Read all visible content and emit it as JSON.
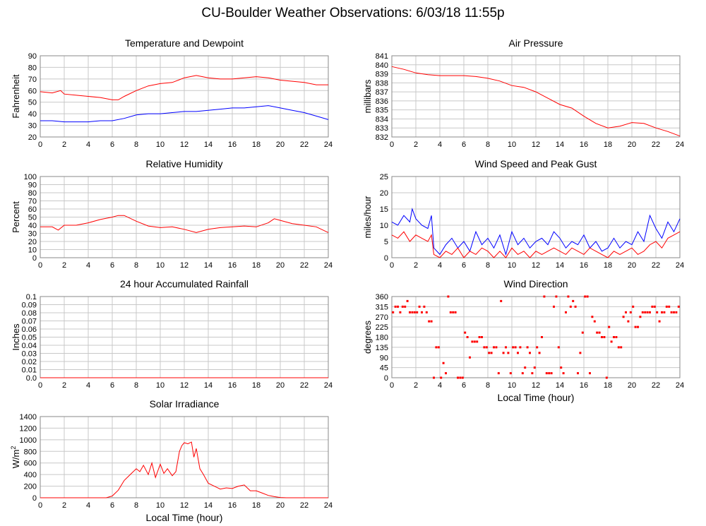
{
  "title": "CU-Boulder Weather Observations: 6/03/18 11:55p",
  "colors": {
    "red": "#ff0000",
    "blue": "#0000ff",
    "grid": "#c8c8c8",
    "frame": "#888888"
  },
  "chart_data": [
    {
      "id": "temp",
      "type": "line",
      "title": "Temperature and Dewpoint",
      "ylabel": "Fahrenheit",
      "xlabel": "",
      "xlim": [
        0,
        24
      ],
      "ylim": [
        20,
        90
      ],
      "yticks": [
        "20",
        "30",
        "40",
        "50",
        "60",
        "70",
        "80",
        "90"
      ],
      "xticks": [
        "0",
        "2",
        "4",
        "6",
        "8",
        "10",
        "12",
        "14",
        "16",
        "18",
        "20",
        "22",
        "24"
      ],
      "grid": true,
      "series": [
        {
          "color": "#ff0000",
          "x": [
            0,
            1,
            1.7,
            2,
            3,
            4,
            5,
            6,
            6.5,
            7,
            8,
            9,
            10,
            11,
            12,
            13,
            14,
            15,
            16,
            17,
            18,
            19,
            20,
            21,
            22,
            23,
            24
          ],
          "values": [
            59,
            58,
            60,
            57,
            56,
            55,
            54,
            52,
            52,
            55,
            60,
            64,
            66,
            67,
            71,
            73,
            71,
            70,
            70,
            71,
            72,
            71,
            69,
            68,
            67,
            65,
            65
          ]
        },
        {
          "color": "#0000ff",
          "x": [
            0,
            1,
            2,
            3,
            4,
            5,
            6,
            7,
            8,
            9,
            10,
            11,
            12,
            13,
            14,
            15,
            16,
            17,
            18,
            19,
            20,
            21,
            22,
            23,
            24
          ],
          "values": [
            34,
            34,
            33,
            33,
            33,
            34,
            34,
            36,
            39,
            40,
            40,
            41,
            42,
            42,
            43,
            44,
            45,
            45,
            46,
            47,
            45,
            43,
            41,
            38,
            35
          ]
        }
      ]
    },
    {
      "id": "pressure",
      "type": "line",
      "title": "Air Pressure",
      "ylabel": "millibars",
      "xlabel": "",
      "xlim": [
        0,
        24
      ],
      "ylim": [
        832,
        841
      ],
      "yticks": [
        "832",
        "833",
        "834",
        "835",
        "836",
        "837",
        "838",
        "839",
        "840",
        "841"
      ],
      "xticks": [
        "0",
        "2",
        "4",
        "6",
        "8",
        "10",
        "12",
        "14",
        "16",
        "18",
        "20",
        "22",
        "24"
      ],
      "grid": true,
      "series": [
        {
          "color": "#ff0000",
          "x": [
            0,
            1,
            2,
            3,
            4,
            5,
            6,
            7,
            8,
            9,
            10,
            11,
            12,
            13,
            14,
            15,
            16,
            17,
            18,
            19,
            20,
            21,
            22,
            23,
            24
          ],
          "values": [
            839.8,
            839.5,
            839.1,
            838.9,
            838.8,
            838.8,
            838.8,
            838.7,
            838.5,
            838.2,
            837.7,
            837.5,
            837,
            836.3,
            835.6,
            835.2,
            834.3,
            833.5,
            833.0,
            833.2,
            833.6,
            833.5,
            833.0,
            832.6,
            832.1
          ]
        }
      ]
    },
    {
      "id": "humidity",
      "type": "line",
      "title": "Relative Humidity",
      "ylabel": "Percent",
      "xlabel": "",
      "xlim": [
        0,
        24
      ],
      "ylim": [
        0,
        100
      ],
      "yticks": [
        "0",
        "10",
        "20",
        "30",
        "40",
        "50",
        "60",
        "70",
        "80",
        "90",
        "100"
      ],
      "xticks": [
        "0",
        "2",
        "4",
        "6",
        "8",
        "10",
        "12",
        "14",
        "16",
        "18",
        "20",
        "22",
        "24"
      ],
      "grid": true,
      "series": [
        {
          "color": "#ff0000",
          "x": [
            0,
            1,
            1.5,
            2,
            3,
            4,
            5,
            6,
            6.5,
            7,
            8,
            9,
            10,
            11,
            12,
            13,
            14,
            15,
            16,
            17,
            18,
            19,
            19.5,
            20,
            21,
            22,
            23,
            24
          ],
          "values": [
            38,
            38,
            34,
            40,
            40,
            43,
            47,
            50,
            52,
            52,
            45,
            39,
            37,
            38,
            35,
            31,
            35,
            37,
            38,
            39,
            38,
            43,
            48,
            46,
            42,
            40,
            38,
            31
          ]
        }
      ]
    },
    {
      "id": "wind",
      "type": "line",
      "title": "Wind Speed and Peak Gust",
      "ylabel": "miles/hour",
      "xlabel": "",
      "xlim": [
        0,
        24
      ],
      "ylim": [
        0,
        25
      ],
      "yticks": [
        "0",
        "5",
        "10",
        "15",
        "20",
        "25"
      ],
      "xticks": [
        "0",
        "2",
        "4",
        "6",
        "8",
        "10",
        "12",
        "14",
        "16",
        "18",
        "20",
        "22",
        "24"
      ],
      "grid": true,
      "series": [
        {
          "color": "#0000ff",
          "x": [
            0,
            0.5,
            1,
            1.5,
            1.7,
            2,
            2.5,
            3,
            3.3,
            3.5,
            4,
            4.5,
            5,
            5.5,
            6,
            6.5,
            7,
            7.5,
            8,
            8.5,
            9,
            9.5,
            10,
            10.5,
            11,
            11.5,
            12,
            12.5,
            13,
            13.5,
            14,
            14.5,
            15,
            15.5,
            16,
            16.5,
            17,
            17.5,
            18,
            18.5,
            19,
            19.5,
            20,
            20.5,
            21,
            21.5,
            22,
            22.5,
            23,
            23.5,
            24
          ],
          "values": [
            11,
            10,
            13,
            11,
            15,
            12,
            10,
            9,
            13,
            3,
            1,
            4,
            6,
            3,
            5,
            2,
            8,
            4,
            6,
            3,
            7,
            1,
            8,
            4,
            6,
            3,
            5,
            6,
            4,
            8,
            6,
            3,
            5,
            4,
            7,
            3,
            5,
            2,
            3,
            6,
            3,
            5,
            4,
            8,
            5,
            13,
            9,
            6,
            11,
            8,
            12
          ]
        },
        {
          "color": "#ff0000",
          "x": [
            0,
            0.5,
            1,
            1.5,
            2,
            2.5,
            3,
            3.3,
            3.5,
            4,
            4.5,
            5,
            5.5,
            6,
            6.5,
            7,
            7.5,
            8,
            8.5,
            9,
            9.5,
            10,
            10.5,
            11,
            11.5,
            12,
            12.5,
            13,
            13.5,
            14,
            14.5,
            15,
            15.5,
            16,
            16.5,
            17,
            17.5,
            18,
            18.5,
            19,
            19.5,
            20,
            20.5,
            21,
            21.5,
            22,
            22.5,
            23,
            23.5,
            24
          ],
          "values": [
            7,
            6,
            8,
            5,
            7,
            6,
            5,
            7,
            1,
            0,
            2,
            1,
            3,
            0,
            2,
            1,
            3,
            2,
            0,
            2,
            0,
            3,
            1,
            2,
            0,
            2,
            1,
            2,
            3,
            2,
            1,
            3,
            2,
            1,
            3,
            2,
            1,
            0,
            2,
            1,
            2,
            3,
            1,
            2,
            4,
            5,
            3,
            6,
            7,
            8
          ]
        }
      ]
    },
    {
      "id": "rain",
      "type": "line",
      "title": "24 hour Accumulated Rainfall",
      "ylabel": "Inches",
      "xlabel": "",
      "xlim": [
        0,
        24
      ],
      "ylim": [
        0,
        0.1
      ],
      "yticks": [
        "0.0",
        "0.01",
        "0.02",
        "0.03",
        "0.04",
        "0.05",
        "0.06",
        "0.07",
        "0.08",
        "0.09",
        "0.1"
      ],
      "xticks": [
        "0",
        "2",
        "4",
        "6",
        "8",
        "10",
        "12",
        "14",
        "16",
        "18",
        "20",
        "22",
        "24"
      ],
      "grid": true,
      "series": [
        {
          "color": "#ff0000",
          "x": [
            0,
            24
          ],
          "values": [
            0,
            0
          ]
        }
      ]
    },
    {
      "id": "direction",
      "type": "scatter",
      "title": "Wind Direction",
      "ylabel": "degrees",
      "xlabel": "Local Time (hour)",
      "xlim": [
        0,
        24
      ],
      "ylim": [
        0,
        360
      ],
      "yticks": [
        "0",
        "45",
        "90",
        "135",
        "180",
        "225",
        "270",
        "315",
        "360"
      ],
      "xticks": [
        "0",
        "2",
        "4",
        "6",
        "8",
        "10",
        "12",
        "14",
        "16",
        "18",
        "20",
        "22",
        "24"
      ],
      "grid": true,
      "series": [
        {
          "color": "#ff0000",
          "x": [
            0.1,
            0.3,
            0.5,
            0.7,
            0.9,
            1.1,
            1.3,
            1.5,
            1.7,
            1.9,
            2.1,
            2.3,
            2.5,
            2.7,
            2.9,
            3.1,
            3.3,
            3.5,
            3.7,
            3.9,
            4.1,
            4.3,
            4.5,
            4.7,
            4.9,
            5.1,
            5.3,
            5.5,
            5.7,
            5.9,
            6.1,
            6.3,
            6.5,
            6.7,
            6.9,
            7.1,
            7.3,
            7.5,
            7.7,
            7.9,
            8.1,
            8.3,
            8.5,
            8.7,
            8.9,
            9.1,
            9.3,
            9.5,
            9.7,
            9.9,
            10.1,
            10.3,
            10.5,
            10.7,
            10.9,
            11.1,
            11.3,
            11.5,
            11.7,
            11.9,
            12.1,
            12.3,
            12.5,
            12.7,
            12.9,
            13.1,
            13.3,
            13.5,
            13.7,
            13.9,
            14.1,
            14.3,
            14.5,
            14.7,
            14.9,
            15.1,
            15.3,
            15.5,
            15.7,
            15.9,
            16.1,
            16.3,
            16.5,
            16.7,
            16.9,
            17.1,
            17.3,
            17.5,
            17.7,
            17.9,
            18.1,
            18.3,
            18.5,
            18.7,
            18.9,
            19.1,
            19.3,
            19.5,
            19.7,
            19.9,
            20.1,
            20.3,
            20.5,
            20.7,
            20.9,
            21.1,
            21.3,
            21.5,
            21.7,
            21.9,
            22.1,
            22.3,
            22.5,
            22.7,
            22.9,
            23.1,
            23.3,
            23.5,
            23.7,
            23.9
          ],
          "values": [
            290,
            315,
            315,
            290,
            315,
            315,
            340,
            290,
            290,
            290,
            290,
            315,
            290,
            315,
            290,
            250,
            250,
            0,
            135,
            135,
            0,
            65,
            20,
            360,
            290,
            290,
            290,
            0,
            0,
            0,
            200,
            180,
            90,
            160,
            160,
            160,
            180,
            180,
            135,
            135,
            110,
            110,
            135,
            135,
            20,
            340,
            110,
            135,
            110,
            20,
            135,
            135,
            110,
            135,
            20,
            45,
            135,
            110,
            20,
            45,
            135,
            110,
            180,
            360,
            20,
            20,
            20,
            315,
            360,
            135,
            45,
            20,
            290,
            360,
            315,
            340,
            315,
            20,
            110,
            200,
            360,
            360,
            20,
            270,
            250,
            200,
            200,
            180,
            180,
            0,
            225,
            160,
            180,
            180,
            135,
            135,
            270,
            290,
            250,
            290,
            315,
            225,
            225,
            270,
            290,
            290,
            290,
            290,
            315,
            315,
            290,
            250,
            290,
            290,
            315,
            315,
            290,
            290,
            290,
            315
          ]
        }
      ]
    },
    {
      "id": "solar",
      "type": "line",
      "title": "Solar Irradiance",
      "ylabel": "W/m",
      "ylabel_sup": "2",
      "xlabel": "Local Time (hour)",
      "xlim": [
        0,
        24
      ],
      "ylim": [
        0,
        1400
      ],
      "yticks": [
        "0",
        "200",
        "400",
        "600",
        "800",
        "1000",
        "1200",
        "1400"
      ],
      "xticks": [
        "0",
        "2",
        "4",
        "6",
        "8",
        "10",
        "12",
        "14",
        "16",
        "18",
        "20",
        "22",
        "24"
      ],
      "grid": true,
      "series": [
        {
          "color": "#ff0000",
          "x": [
            0,
            5.5,
            6,
            6.5,
            7,
            7.5,
            8,
            8.3,
            8.6,
            9,
            9.3,
            9.6,
            10,
            10.3,
            10.6,
            11,
            11.3,
            11.6,
            11.8,
            12,
            12.3,
            12.6,
            12.8,
            13,
            13.3,
            13.6,
            14,
            14.5,
            15,
            15.5,
            16,
            16.5,
            17,
            17.5,
            18,
            18.5,
            19,
            19.5,
            20,
            20.5,
            24
          ],
          "values": [
            0,
            0,
            30,
            130,
            300,
            400,
            500,
            450,
            560,
            400,
            600,
            350,
            580,
            420,
            500,
            380,
            450,
            800,
            900,
            950,
            930,
            960,
            700,
            850,
            500,
            400,
            250,
            200,
            150,
            170,
            160,
            200,
            220,
            120,
            120,
            80,
            40,
            20,
            5,
            0,
            0
          ]
        }
      ]
    }
  ]
}
